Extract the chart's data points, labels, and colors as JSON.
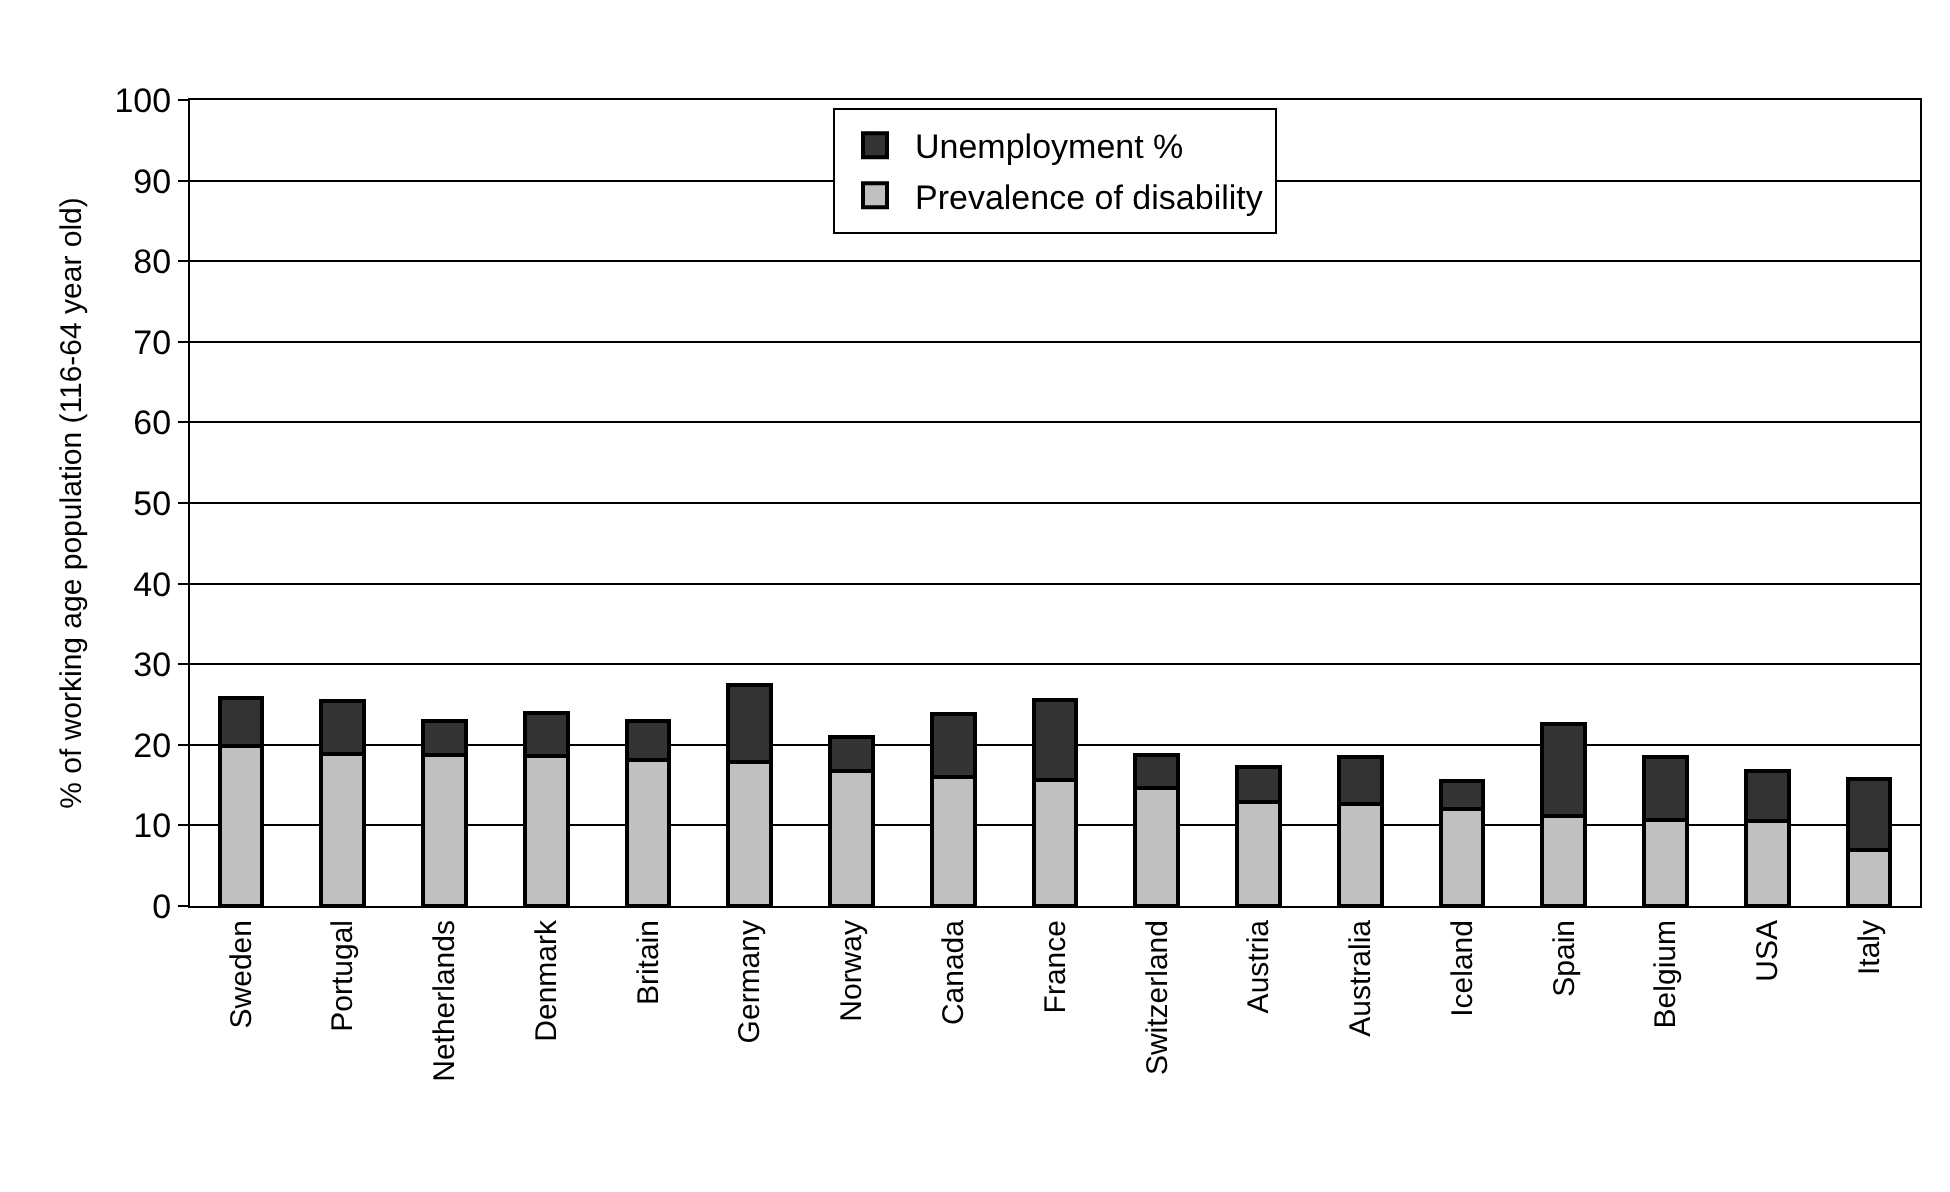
{
  "chart_data": {
    "type": "bar",
    "stacked": true,
    "ylabel": "% of working age population (116-64 year old)",
    "categories": [
      "Sweden",
      "Portugal",
      "Netherlands",
      "Denmark",
      "Britain",
      "Germany",
      "Norway",
      "Canada",
      "France",
      "Switzerland",
      "Austria",
      "Australia",
      "Iceland",
      "Spain",
      "Belgium",
      "USA",
      "Italy"
    ],
    "series": [
      {
        "name": "Prevalence of disability",
        "color": "#c0c0c0",
        "values": [
          19.8,
          18.9,
          18.7,
          18.6,
          18.1,
          17.9,
          16.7,
          16.0,
          15.6,
          14.6,
          12.9,
          12.6,
          12.0,
          11.2,
          10.7,
          10.5,
          7.0
        ]
      },
      {
        "name": "Unemployment %",
        "color": "#333333",
        "values": [
          6.0,
          6.5,
          4.3,
          5.3,
          4.9,
          9.5,
          4.3,
          7.8,
          10.0,
          4.1,
          4.3,
          5.9,
          3.5,
          11.4,
          7.8,
          6.2,
          8.7
        ]
      }
    ],
    "ylim": [
      0,
      100
    ],
    "yticks": [
      0,
      10,
      20,
      30,
      40,
      50,
      60,
      70,
      80,
      90,
      100
    ],
    "grid": "y",
    "legend": "top"
  }
}
